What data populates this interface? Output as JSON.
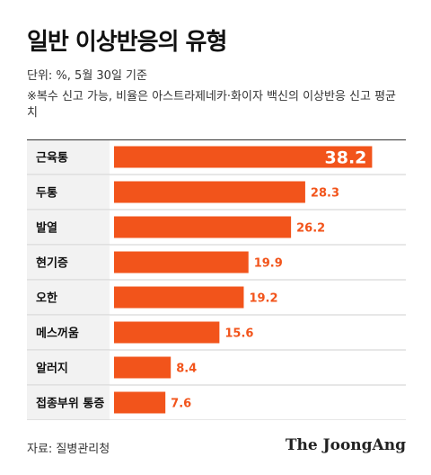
{
  "header": {
    "title": "일반 이상반응의 유형",
    "unit": "단위: %, 5월 30일 기준",
    "note": "※복수 신고 가능, 비율은 아스트라제네카·화이자 백신의 이상반응 신고 평균치"
  },
  "footer": {
    "source": "자료: 질병관리청",
    "logo": "The JoongAng"
  },
  "colors": {
    "bar": "#f2541b",
    "value_text": "#f2541b",
    "label_bg": "#f2f2f2",
    "rule": "#333333"
  },
  "chart_data": {
    "type": "bar",
    "orientation": "horizontal",
    "categories": [
      "근육통",
      "두통",
      "발열",
      "현기증",
      "오한",
      "메스꺼움",
      "알러지",
      "접종부위 통증"
    ],
    "values": [
      38.2,
      28.3,
      26.2,
      19.9,
      19.2,
      15.6,
      8.4,
      7.6
    ],
    "title": "일반 이상반응의 유형",
    "xlabel": "",
    "ylabel": "",
    "xlim": [
      0,
      42
    ],
    "grid": false,
    "legend": "none"
  }
}
